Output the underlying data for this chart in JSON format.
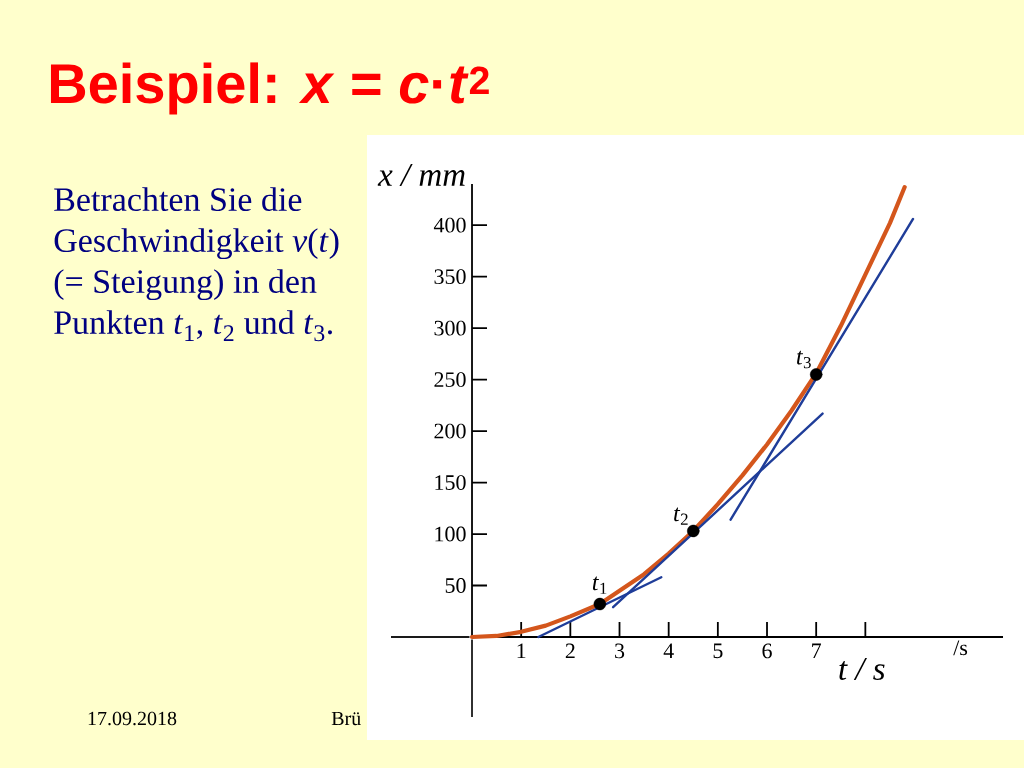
{
  "chart_data": {
    "type": "line",
    "title": "Beispiel: *x* = *c*·*t*$^{2}$",
    "xlabel": "t / s",
    "ylabel": "x / mm",
    "xlim": [
      0,
      10.8
    ],
    "ylim": [
      0,
      440
    ],
    "xticks": [
      1,
      2,
      3,
      4,
      5,
      6,
      7,
      {
        "value": 8,
        "label": null
      }
    ],
    "yticks": [
      50,
      100,
      150,
      200,
      250,
      300,
      350,
      400
    ],
    "series": [
      {
        "color": "#d4561c",
        "marker": "none",
        "x": [
          0,
          0.5,
          1,
          1.5,
          2,
          2.6,
          3,
          3.5,
          4,
          4.5,
          5,
          5.5,
          6,
          6.5,
          7,
          7.5,
          8,
          8.5,
          8.8
        ],
        "values": [
          0,
          1,
          5,
          11,
          20,
          32,
          45,
          61,
          81,
          103,
          129,
          157,
          187,
          220,
          256,
          302,
          352,
          402,
          437
        ]
      },
      {
        "color": "#1f3d99",
        "marker": "none",
        "x": [
          1.35,
          3.85
        ],
        "values": [
          0,
          58
        ]
      },
      {
        "color": "#1f3d99",
        "marker": "none",
        "x": [
          2.87,
          7.13
        ],
        "values": [
          29,
          217
        ]
      },
      {
        "color": "#1f3d99",
        "marker": "none",
        "x": [
          5.26,
          8.97
        ],
        "values": [
          114,
          406
        ]
      },
      {
        "type": "scatter",
        "color": "#000000",
        "marker": "circle",
        "x": [
          2.6,
          4.5,
          7.0
        ],
        "values": [
          32,
          103,
          255
        ]
      }
    ],
    "annotations": [
      "Betrachten Sie die Geschwindigkeit *v*(*t*) (= Steigung) in den Punkten *t*$_{1}$, *t*$_{2}$ und *t*$_{3}$.",
      "17.09.2018",
      "Brü",
      "/s",
      {
        "text": "*t*$_{1}$",
        "x": 2.6,
        "y": 32
      },
      {
        "text": "*t*$_{2}$",
        "x": 4.5,
        "y": 103
      },
      {
        "text": "*t*$_{3}$",
        "x": 7.0,
        "y": 255
      }
    ]
  }
}
